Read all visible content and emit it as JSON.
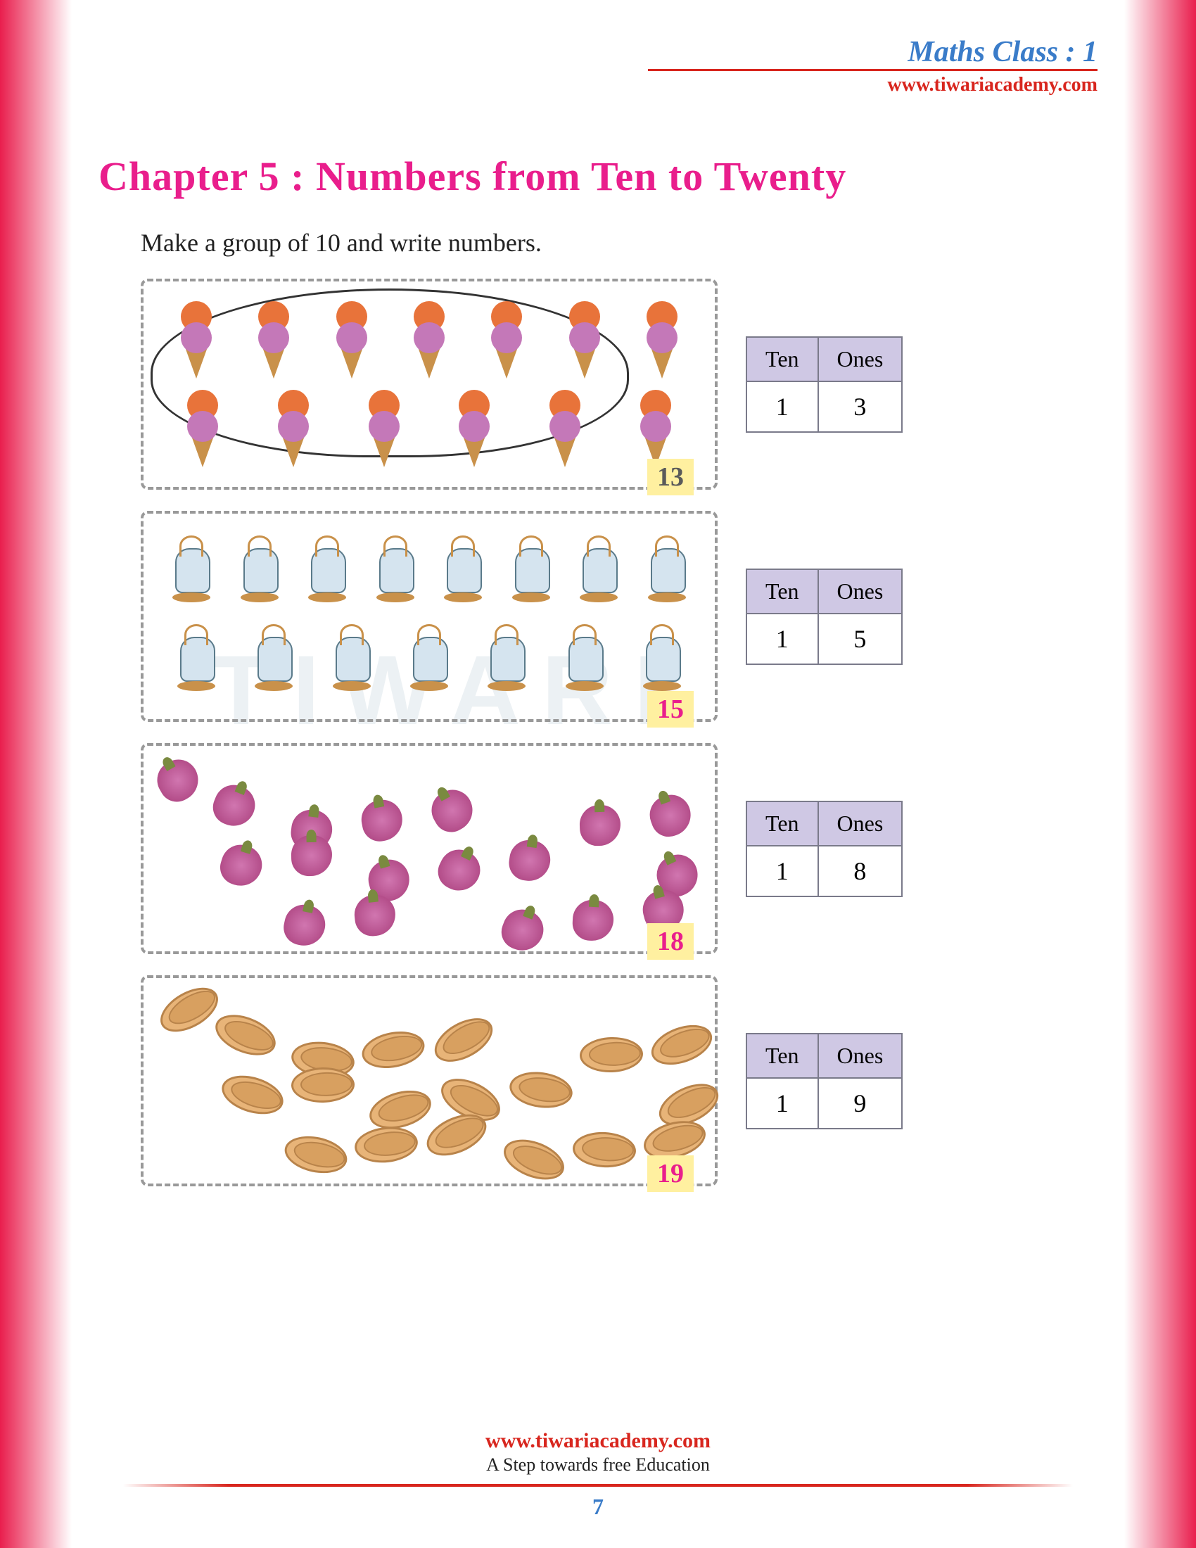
{
  "header": {
    "title": "Maths Class : 1",
    "url": "www.tiwariacademy.com"
  },
  "chapter": {
    "title": "Chapter 5 : Numbers from Ten to  Twenty",
    "instruction": "Make a group of 10 and write numbers."
  },
  "table_headers": {
    "ten": "Ten",
    "ones": "Ones"
  },
  "exercises": [
    {
      "item_type": "icecream",
      "count": 13,
      "row1": 7,
      "row2": 6,
      "has_group_circle": true,
      "answer": "13",
      "answer_color": "gray",
      "ten": "1",
      "ones": "3"
    },
    {
      "item_type": "lantern",
      "count": 15,
      "row1": 8,
      "row2": 7,
      "has_group_circle": false,
      "answer": "15",
      "answer_color": "pink",
      "ten": "1",
      "ones": "5"
    },
    {
      "item_type": "onion",
      "count": 18,
      "scattered": true,
      "has_group_circle": false,
      "answer": "18",
      "answer_color": "pink",
      "ten": "1",
      "ones": "8"
    },
    {
      "item_type": "basket",
      "count": 19,
      "scattered": true,
      "has_group_circle": false,
      "answer": "19",
      "answer_color": "pink",
      "ten": "1",
      "ones": "9"
    }
  ],
  "footer": {
    "url": "www.tiwariacademy.com",
    "tagline": "A Step towards free Education",
    "page_number": "7"
  },
  "colors": {
    "edge_gradient": "#e91e4d",
    "title_blue": "#3a7cc9",
    "url_red": "#d8261e",
    "chapter_pink": "#e91e8c",
    "table_header_bg": "#cfc8e4",
    "badge_bg": "#fff0a0"
  }
}
